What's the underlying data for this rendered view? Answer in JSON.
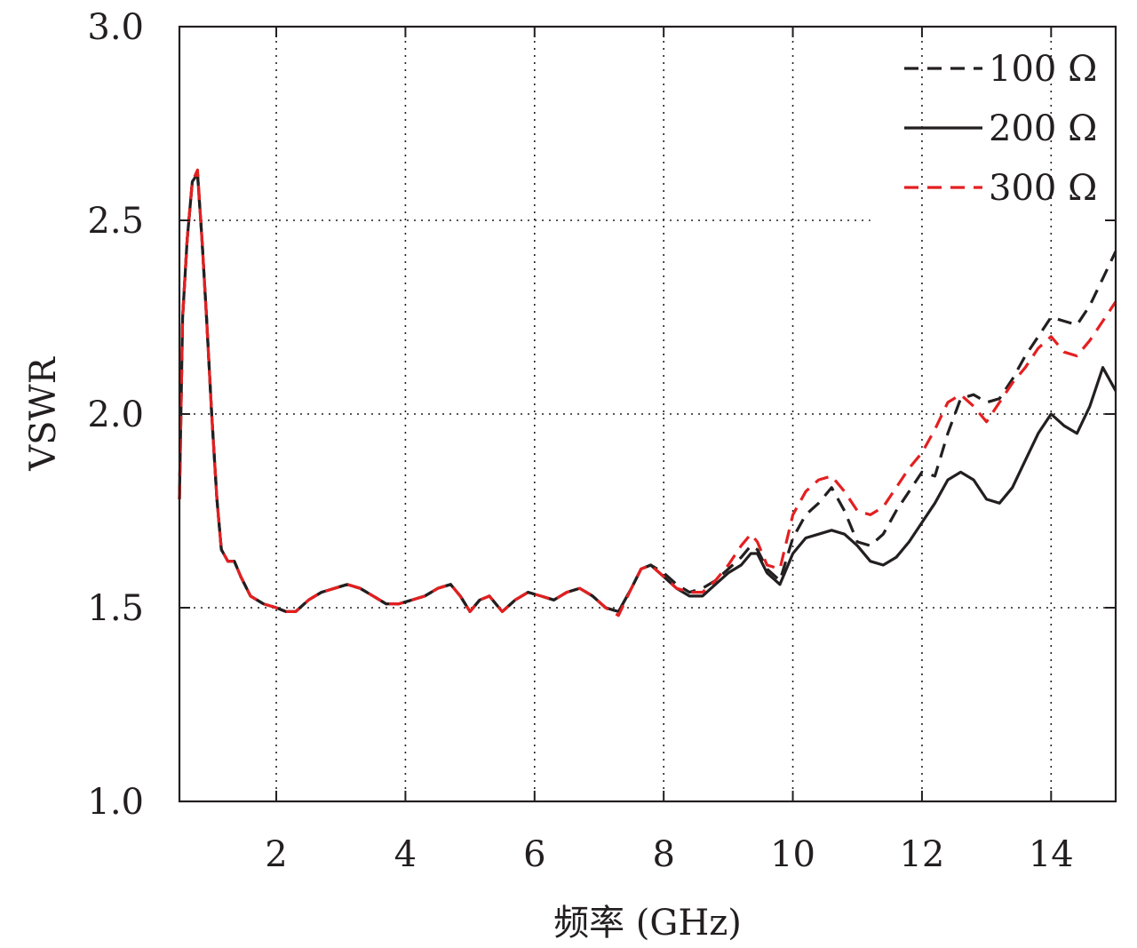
{
  "chart_data": {
    "type": "line",
    "title": "",
    "xlabel": "频率 (GHz)",
    "ylabel": "VSWR",
    "xlim": [
      0.5,
      15
    ],
    "ylim": [
      1.0,
      3.0
    ],
    "xticks": [
      2,
      4,
      6,
      8,
      10,
      12,
      14
    ],
    "yticks": [
      1.0,
      1.5,
      2.0,
      2.5,
      3.0
    ],
    "ytick_labels": [
      "1.0",
      "1.5",
      "2.0",
      "2.5",
      "3.0"
    ],
    "grid": true,
    "legend_position": "top-right",
    "series": [
      {
        "name": "100 Ω",
        "color": "#231f20",
        "dash": "dashed",
        "x": [
          0.5,
          0.55,
          0.62,
          0.7,
          0.78,
          0.85,
          0.92,
          1.0,
          1.08,
          1.15,
          1.25,
          1.35,
          1.45,
          1.6,
          1.8,
          2.0,
          2.15,
          2.3,
          2.5,
          2.7,
          2.9,
          3.1,
          3.3,
          3.5,
          3.7,
          3.9,
          4.1,
          4.3,
          4.5,
          4.7,
          4.85,
          5.0,
          5.15,
          5.3,
          5.5,
          5.7,
          5.9,
          6.1,
          6.3,
          6.5,
          6.7,
          6.9,
          7.1,
          7.3,
          7.5,
          7.65,
          7.8,
          8.0,
          8.2,
          8.4,
          8.6,
          8.8,
          9.0,
          9.2,
          9.35,
          9.45,
          9.6,
          9.8,
          10.0,
          10.2,
          10.4,
          10.6,
          10.8,
          11.0,
          11.2,
          11.4,
          11.6,
          11.8,
          12.0,
          12.2,
          12.4,
          12.6,
          12.8,
          13.0,
          13.2,
          13.4,
          13.6,
          13.8,
          14.0,
          14.2,
          14.4,
          14.6,
          14.8,
          15.0
        ],
        "y": [
          1.78,
          2.25,
          2.45,
          2.6,
          2.62,
          2.45,
          2.25,
          2.0,
          1.78,
          1.65,
          1.62,
          1.62,
          1.58,
          1.53,
          1.51,
          1.5,
          1.49,
          1.49,
          1.52,
          1.54,
          1.55,
          1.56,
          1.55,
          1.53,
          1.51,
          1.51,
          1.52,
          1.53,
          1.55,
          1.56,
          1.53,
          1.49,
          1.52,
          1.53,
          1.49,
          1.52,
          1.54,
          1.53,
          1.52,
          1.54,
          1.55,
          1.53,
          1.5,
          1.49,
          1.55,
          1.6,
          1.61,
          1.59,
          1.56,
          1.54,
          1.55,
          1.57,
          1.6,
          1.63,
          1.66,
          1.65,
          1.6,
          1.57,
          1.68,
          1.74,
          1.77,
          1.81,
          1.75,
          1.67,
          1.66,
          1.69,
          1.75,
          1.8,
          1.85,
          1.84,
          1.95,
          2.04,
          2.05,
          2.03,
          2.04,
          2.09,
          2.15,
          2.2,
          2.25,
          2.24,
          2.23,
          2.28,
          2.35,
          2.42
        ]
      },
      {
        "name": "200 Ω",
        "color": "#231f20",
        "dash": "solid",
        "x": [
          0.5,
          0.55,
          0.62,
          0.7,
          0.78,
          0.85,
          0.92,
          1.0,
          1.08,
          1.15,
          1.25,
          1.35,
          1.45,
          1.6,
          1.8,
          2.0,
          2.15,
          2.3,
          2.5,
          2.7,
          2.9,
          3.1,
          3.3,
          3.5,
          3.7,
          3.9,
          4.1,
          4.3,
          4.5,
          4.7,
          4.85,
          5.0,
          5.15,
          5.3,
          5.5,
          5.7,
          5.9,
          6.1,
          6.3,
          6.5,
          6.7,
          6.9,
          7.1,
          7.3,
          7.5,
          7.65,
          7.8,
          8.0,
          8.2,
          8.4,
          8.6,
          8.8,
          9.0,
          9.2,
          9.35,
          9.45,
          9.6,
          9.8,
          10.0,
          10.2,
          10.4,
          10.6,
          10.8,
          11.0,
          11.2,
          11.4,
          11.6,
          11.8,
          12.0,
          12.2,
          12.4,
          12.6,
          12.8,
          13.0,
          13.2,
          13.4,
          13.6,
          13.8,
          14.0,
          14.2,
          14.4,
          14.6,
          14.8,
          15.0
        ],
        "y": [
          1.78,
          2.25,
          2.45,
          2.6,
          2.62,
          2.45,
          2.25,
          2.0,
          1.78,
          1.65,
          1.62,
          1.62,
          1.58,
          1.53,
          1.51,
          1.5,
          1.49,
          1.49,
          1.52,
          1.54,
          1.55,
          1.56,
          1.55,
          1.53,
          1.51,
          1.51,
          1.52,
          1.53,
          1.55,
          1.56,
          1.53,
          1.49,
          1.52,
          1.53,
          1.49,
          1.52,
          1.54,
          1.53,
          1.52,
          1.54,
          1.55,
          1.53,
          1.5,
          1.49,
          1.55,
          1.6,
          1.61,
          1.58,
          1.55,
          1.53,
          1.53,
          1.56,
          1.59,
          1.61,
          1.64,
          1.64,
          1.59,
          1.56,
          1.64,
          1.68,
          1.69,
          1.7,
          1.69,
          1.66,
          1.62,
          1.61,
          1.63,
          1.67,
          1.72,
          1.77,
          1.83,
          1.85,
          1.83,
          1.78,
          1.77,
          1.81,
          1.88,
          1.95,
          2.0,
          1.97,
          1.95,
          2.02,
          2.12,
          2.06
        ]
      },
      {
        "name": "300 Ω",
        "color": "#e41f20",
        "dash": "dashed",
        "x": [
          0.5,
          0.55,
          0.62,
          0.7,
          0.78,
          0.85,
          0.92,
          1.0,
          1.08,
          1.15,
          1.25,
          1.35,
          1.45,
          1.6,
          1.8,
          2.0,
          2.15,
          2.3,
          2.5,
          2.7,
          2.9,
          3.1,
          3.3,
          3.5,
          3.7,
          3.9,
          4.1,
          4.3,
          4.5,
          4.7,
          4.85,
          5.0,
          5.15,
          5.3,
          5.5,
          5.7,
          5.9,
          6.1,
          6.3,
          6.5,
          6.7,
          6.9,
          7.1,
          7.3,
          7.5,
          7.65,
          7.8,
          8.0,
          8.2,
          8.4,
          8.6,
          8.8,
          9.0,
          9.2,
          9.35,
          9.45,
          9.6,
          9.8,
          10.0,
          10.2,
          10.4,
          10.6,
          10.8,
          11.0,
          11.2,
          11.4,
          11.6,
          11.8,
          12.0,
          12.2,
          12.4,
          12.6,
          12.8,
          13.0,
          13.2,
          13.4,
          13.6,
          13.8,
          14.0,
          14.2,
          14.4,
          14.6,
          14.8,
          15.0
        ],
        "y": [
          1.78,
          2.25,
          2.45,
          2.6,
          2.63,
          2.45,
          2.25,
          2.0,
          1.78,
          1.65,
          1.62,
          1.62,
          1.58,
          1.53,
          1.51,
          1.5,
          1.49,
          1.49,
          1.52,
          1.54,
          1.55,
          1.56,
          1.55,
          1.53,
          1.51,
          1.51,
          1.52,
          1.53,
          1.55,
          1.56,
          1.53,
          1.49,
          1.52,
          1.53,
          1.49,
          1.52,
          1.54,
          1.53,
          1.52,
          1.54,
          1.55,
          1.53,
          1.5,
          1.48,
          1.55,
          1.6,
          1.61,
          1.58,
          1.55,
          1.54,
          1.54,
          1.57,
          1.61,
          1.66,
          1.69,
          1.67,
          1.61,
          1.6,
          1.74,
          1.8,
          1.83,
          1.84,
          1.8,
          1.75,
          1.74,
          1.76,
          1.81,
          1.86,
          1.9,
          1.96,
          2.03,
          2.05,
          2.02,
          1.98,
          2.03,
          2.08,
          2.12,
          2.17,
          2.2,
          2.16,
          2.15,
          2.19,
          2.24,
          2.29
        ]
      }
    ]
  }
}
